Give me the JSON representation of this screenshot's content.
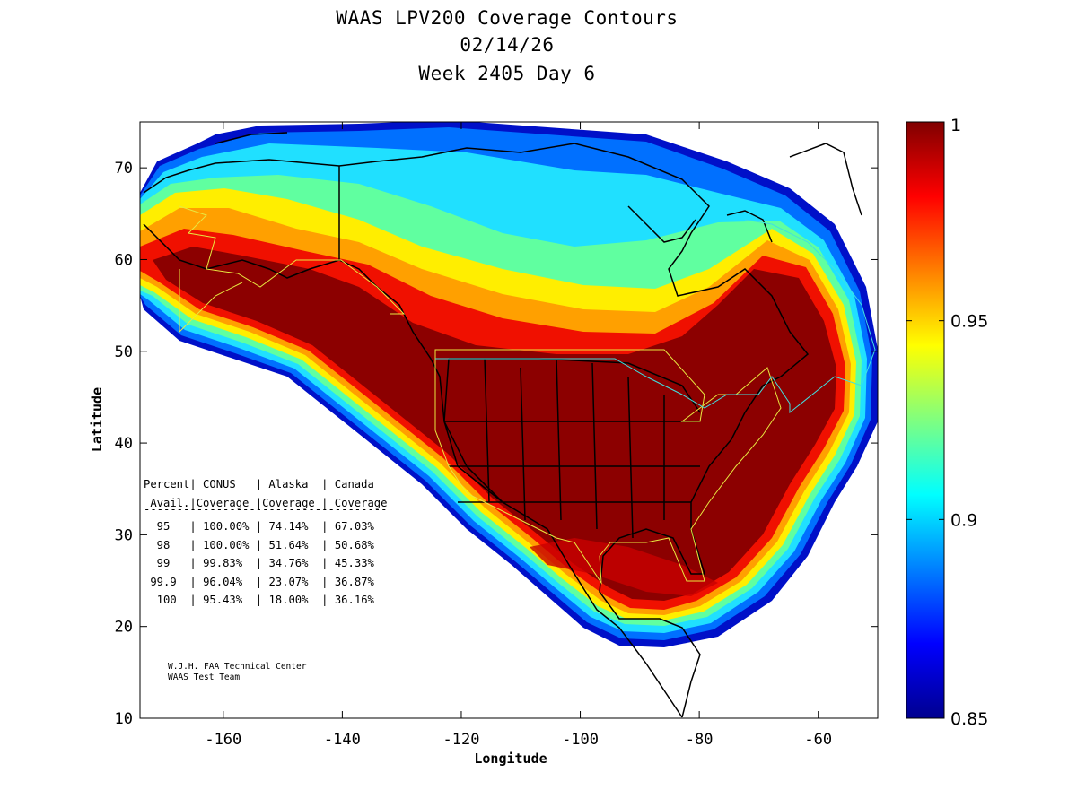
{
  "title": {
    "line1": "WAAS LPV200 Coverage Contours",
    "line2": "02/14/26",
    "line3": "Week 2405 Day 6"
  },
  "axes": {
    "xlabel": "Longitude",
    "ylabel": "Latitude",
    "xlim": [
      -174,
      -50
    ],
    "ylim": [
      10,
      75
    ],
    "xticks": [
      -160,
      -140,
      -120,
      -100,
      -80,
      -60
    ],
    "yticks": [
      10,
      20,
      30,
      40,
      50,
      60,
      70
    ]
  },
  "colorbar": {
    "min": 0.85,
    "max": 1,
    "colormap": "jet",
    "ticks": [
      {
        "value": 1,
        "label": "1"
      },
      {
        "value": 0.95,
        "label": "0.95"
      },
      {
        "value": 0.9,
        "label": "0.9"
      },
      {
        "value": 0.85,
        "label": "0.85"
      }
    ]
  },
  "table": {
    "header1": "Percent| CONUS   | Alaska  | Canada",
    "header2": " Avail.|Coverage |Coverage | Coverage",
    "separator": "-------------------------------------",
    "rows": [
      {
        "avail": "95",
        "conus": "100.00%",
        "alaska": "74.14%",
        "canada": "67.03%"
      },
      {
        "avail": "98",
        "conus": "100.00%",
        "alaska": "51.64%",
        "canada": "50.68%"
      },
      {
        "avail": "99",
        "conus": "99.83%",
        "alaska": "34.76%",
        "canada": "45.33%"
      },
      {
        "avail": "99.9",
        "conus": "96.04%",
        "alaska": "23.07%",
        "canada": "36.87%"
      },
      {
        "avail": "100",
        "conus": "95.43%",
        "alaska": "18.00%",
        "canada": "36.16%"
      }
    ]
  },
  "credit": {
    "line1": "W.J.H. FAA Technical Center",
    "line2": "WAAS Test Team"
  }
}
